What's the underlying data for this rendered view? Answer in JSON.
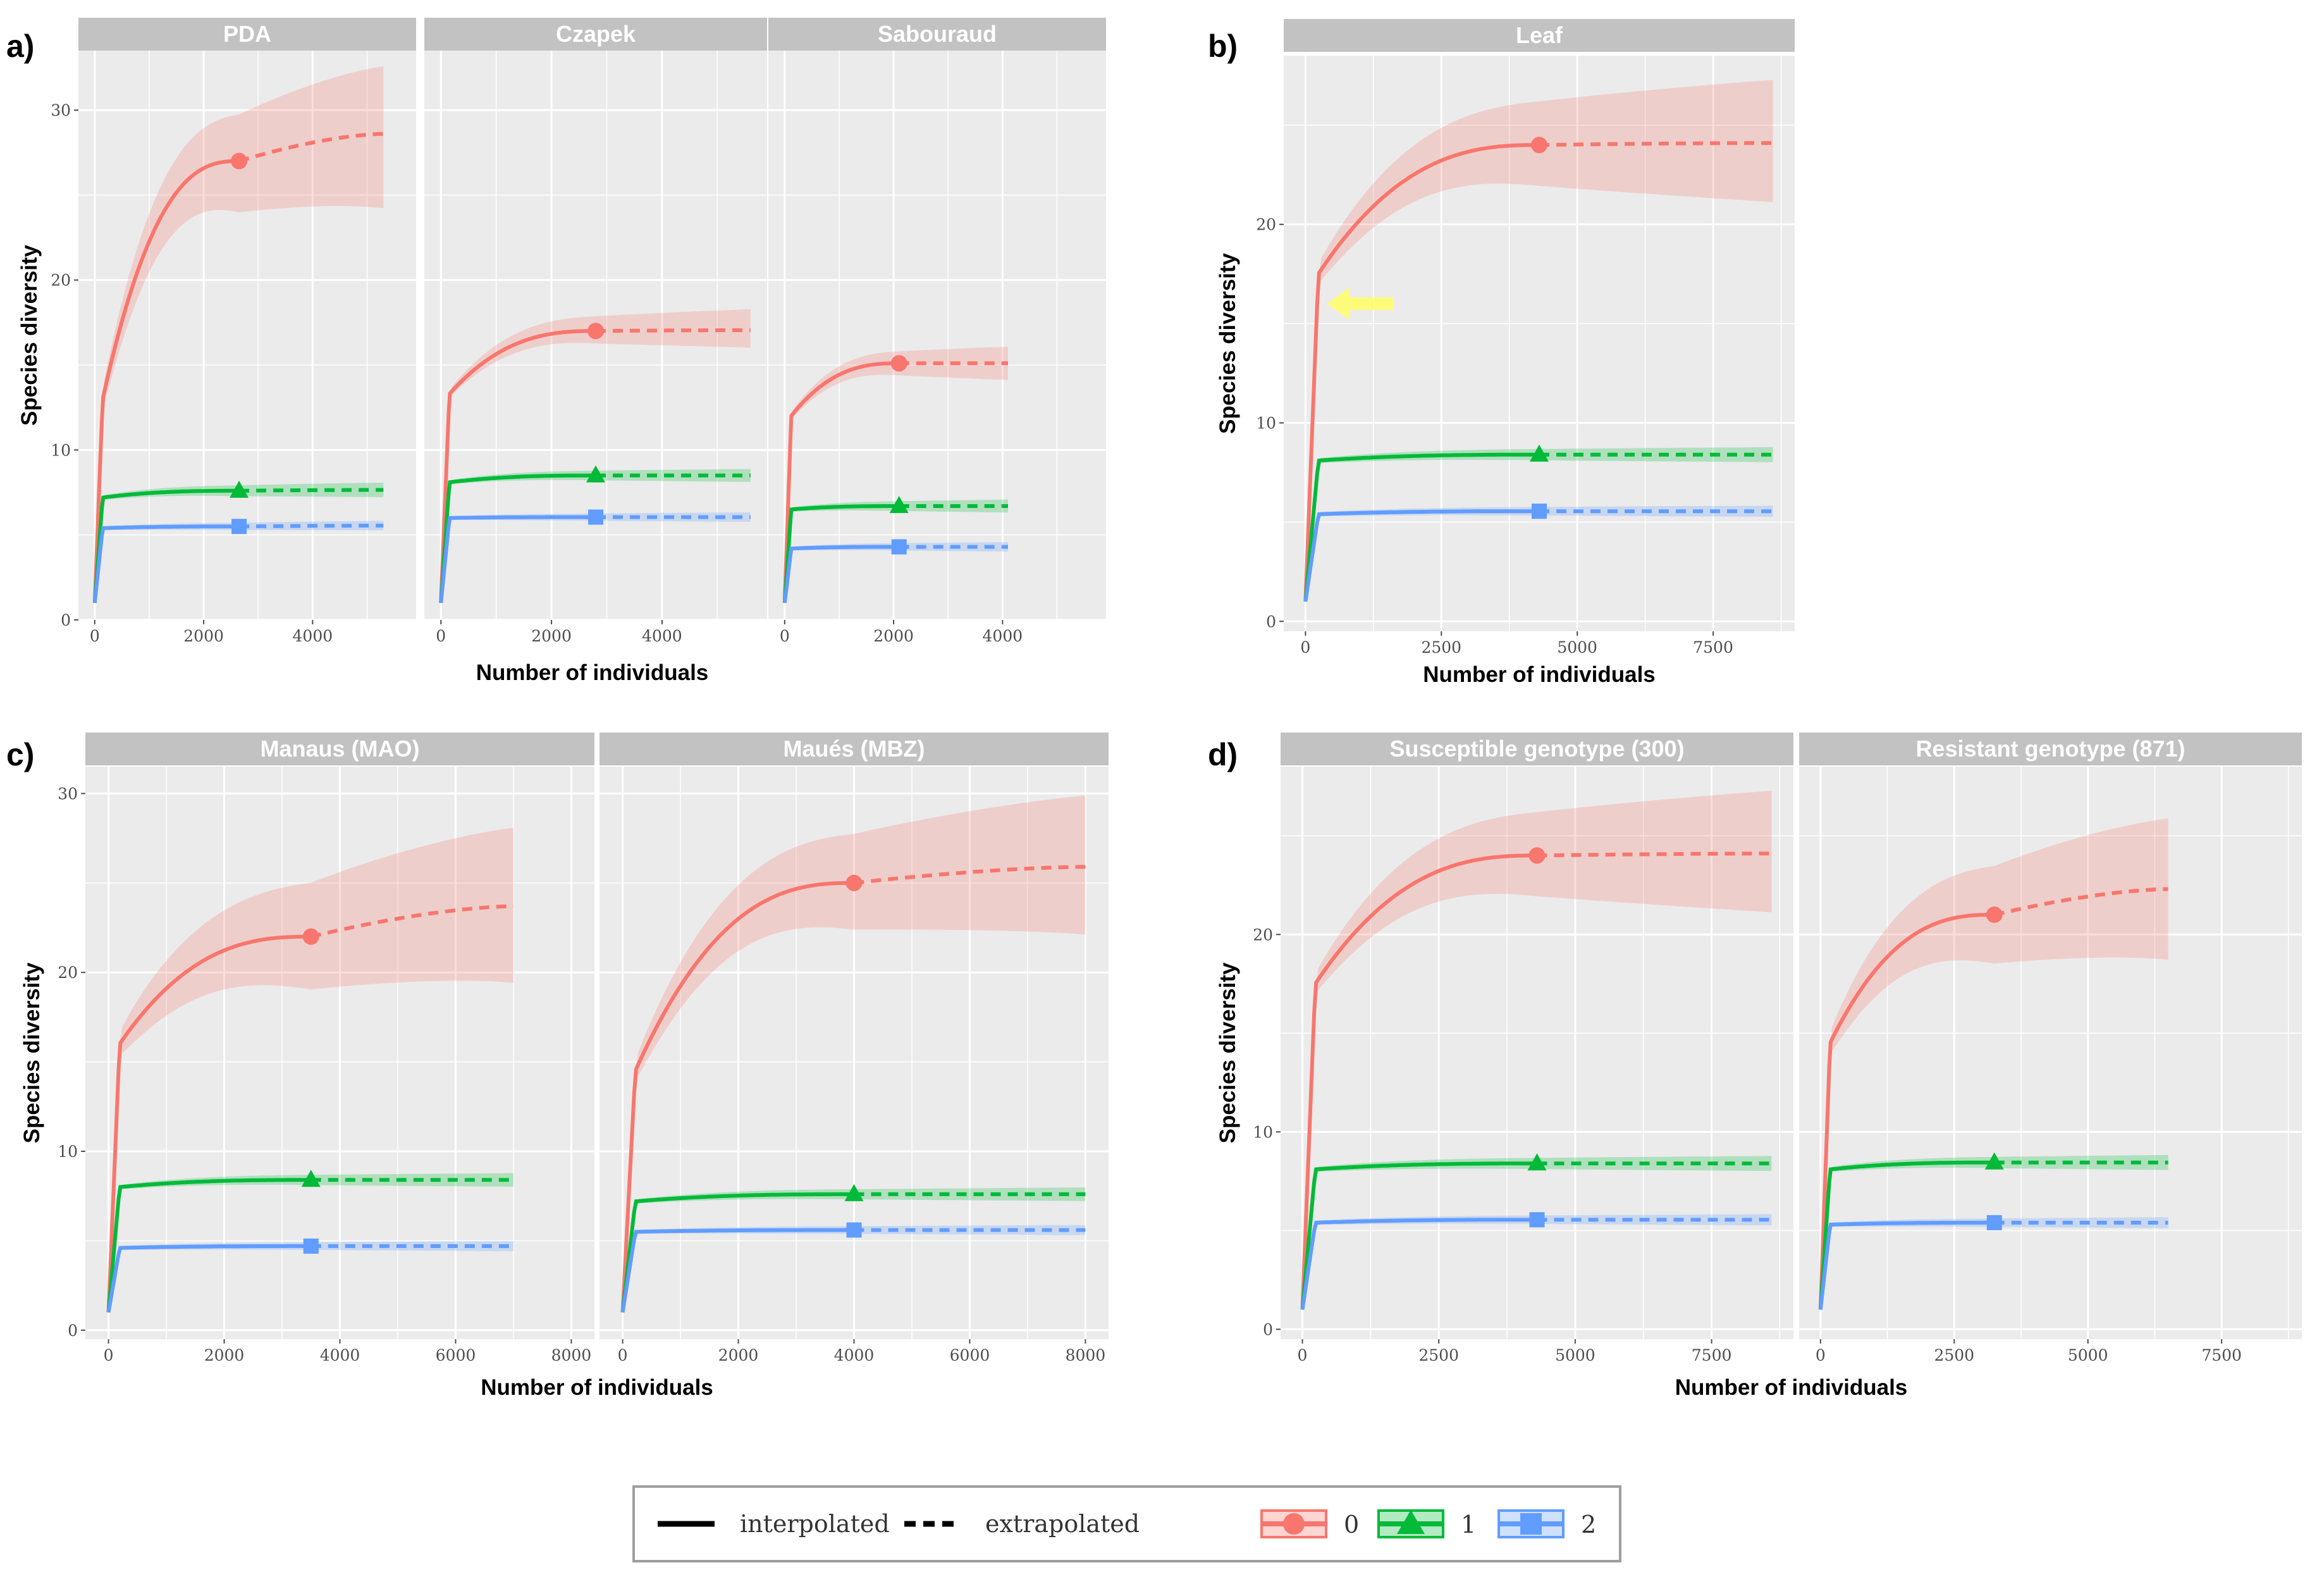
{
  "figure": {
    "legend": {
      "linetype": [
        {
          "key": "solid",
          "label": "interpolated"
        },
        {
          "key": "dashed",
          "label": "extrapolated"
        }
      ],
      "order": [
        {
          "label": "0",
          "color": "#F8766D",
          "shape": "circle"
        },
        {
          "label": "1",
          "color": "#00BA38",
          "shape": "triangle"
        },
        {
          "label": "2",
          "color": "#619CFF",
          "shape": "square"
        }
      ]
    },
    "colors": {
      "panel_bg": "#EBEBEB",
      "strip_bg": "#C2C2C2",
      "grid": "#FFFFFF"
    }
  },
  "chart_data": [
    {
      "id": "a",
      "panel_label": "a)",
      "type": "line",
      "xlabel": "Number of individuals",
      "ylabel": "Species diversity",
      "ylim": [
        0,
        33.5
      ],
      "xlim": [
        -300,
        5900
      ],
      "yticks": [
        0,
        10,
        20,
        30
      ],
      "xticks": [
        0,
        2000,
        4000
      ],
      "facets": [
        {
          "title": "PDA",
          "ref": 2650,
          "xmax": 5300,
          "series": [
            {
              "order": "0",
              "start": 1,
              "jump": 13.0,
              "observed": 27.0,
              "asymptote": 28.6,
              "ci": [
                24.3,
                32.5
              ]
            },
            {
              "order": "1",
              "start": 1,
              "jump": 7.2,
              "observed": 7.6,
              "asymptote": 7.65,
              "ci": [
                7.3,
                8.0
              ]
            },
            {
              "order": "2",
              "start": 1,
              "jump": 5.4,
              "observed": 5.5,
              "asymptote": 5.55,
              "ci": [
                5.35,
                5.75
              ]
            }
          ]
        },
        {
          "title": "Czapek",
          "ref": 2800,
          "xmax": 5600,
          "series": [
            {
              "order": "0",
              "start": 1,
              "jump": 13.3,
              "observed": 17.0,
              "asymptote": 17.05,
              "ci": [
                16.1,
                18.2
              ]
            },
            {
              "order": "1",
              "start": 1,
              "jump": 8.1,
              "observed": 8.5,
              "asymptote": 8.5,
              "ci": [
                8.2,
                8.8
              ]
            },
            {
              "order": "2",
              "start": 1,
              "jump": 6.0,
              "observed": 6.05,
              "asymptote": 6.05,
              "ci": [
                5.85,
                6.25
              ]
            }
          ]
        },
        {
          "title": "Sabouraud",
          "ref": 2100,
          "xmax": 4100,
          "series": [
            {
              "order": "0",
              "start": 1,
              "jump": 12.0,
              "observed": 15.1,
              "asymptote": 15.1,
              "ci": [
                14.2,
                16.0
              ]
            },
            {
              "order": "1",
              "start": 1,
              "jump": 6.5,
              "observed": 6.7,
              "asymptote": 6.7,
              "ci": [
                6.4,
                7.0
              ]
            },
            {
              "order": "2",
              "start": 1,
              "jump": 4.2,
              "observed": 4.3,
              "asymptote": 4.3,
              "ci": [
                4.1,
                4.5
              ]
            }
          ]
        }
      ]
    },
    {
      "id": "b",
      "panel_label": "b)",
      "type": "line",
      "xlabel": "Number of individuals",
      "ylabel": "Species diversity",
      "ylim": [
        -0.5,
        28.5
      ],
      "xlim": [
        -400,
        9000
      ],
      "yticks": [
        0,
        10,
        20
      ],
      "xticks": [
        0,
        2500,
        5000,
        7500
      ],
      "facets": [
        {
          "title": "Leaf",
          "ref": 4300,
          "xmax": 8600,
          "series": [
            {
              "order": "0",
              "start": 1,
              "jump": 17.5,
              "observed": 24.0,
              "asymptote": 24.1,
              "ci": [
                21.2,
                27.2
              ]
            },
            {
              "order": "1",
              "start": 1,
              "jump": 8.1,
              "observed": 8.4,
              "asymptote": 8.4,
              "ci": [
                8.1,
                8.7
              ]
            },
            {
              "order": "2",
              "start": 1,
              "jump": 5.4,
              "observed": 5.55,
              "asymptote": 5.55,
              "ci": [
                5.35,
                5.75
              ]
            }
          ]
        }
      ]
    },
    {
      "id": "c",
      "panel_label": "c)",
      "type": "line",
      "xlabel": "Number of individuals",
      "ylabel": "Species diversity",
      "ylim": [
        -0.5,
        31.5
      ],
      "xlim": [
        -400,
        8400
      ],
      "yticks": [
        0,
        10,
        20,
        30
      ],
      "xticks": [
        0,
        2000,
        4000,
        6000,
        8000
      ],
      "facets": [
        {
          "title": "Manaus (MAO)",
          "ref": 3500,
          "xmax": 7000,
          "series": [
            {
              "order": "0",
              "start": 1,
              "jump": 16.0,
              "observed": 22.0,
              "asymptote": 23.7,
              "ci": [
                19.5,
                28.0
              ]
            },
            {
              "order": "1",
              "start": 1,
              "jump": 8.0,
              "observed": 8.4,
              "asymptote": 8.4,
              "ci": [
                8.1,
                8.7
              ]
            },
            {
              "order": "2",
              "start": 1,
              "jump": 4.6,
              "observed": 4.7,
              "asymptote": 4.7,
              "ci": [
                4.5,
                4.9
              ]
            }
          ]
        },
        {
          "title": "Maués (MBZ)",
          "ref": 4000,
          "xmax": 8000,
          "series": [
            {
              "order": "0",
              "start": 1,
              "jump": 14.5,
              "observed": 25.0,
              "asymptote": 25.9,
              "ci": [
                22.2,
                29.8
              ]
            },
            {
              "order": "1",
              "start": 1,
              "jump": 7.2,
              "observed": 7.6,
              "asymptote": 7.6,
              "ci": [
                7.3,
                7.9
              ]
            },
            {
              "order": "2",
              "start": 1,
              "jump": 5.5,
              "observed": 5.6,
              "asymptote": 5.6,
              "ci": [
                5.4,
                5.8
              ]
            }
          ]
        }
      ]
    },
    {
      "id": "d",
      "panel_label": "d)",
      "type": "line",
      "xlabel": "Number of individuals",
      "ylabel": "Species diversity",
      "ylim": [
        -0.5,
        28.5
      ],
      "xlim": [
        -400,
        9000
      ],
      "yticks": [
        0,
        10,
        20
      ],
      "xticks": [
        0,
        2500,
        5000,
        7500
      ],
      "facets": [
        {
          "title": "Susceptible genotype (300)",
          "ref": 4300,
          "xmax": 8600,
          "series": [
            {
              "order": "0",
              "start": 1,
              "jump": 17.5,
              "observed": 24.0,
              "asymptote": 24.1,
              "ci": [
                21.2,
                27.2
              ]
            },
            {
              "order": "1",
              "start": 1,
              "jump": 8.1,
              "observed": 8.4,
              "asymptote": 8.4,
              "ci": [
                8.1,
                8.7
              ]
            },
            {
              "order": "2",
              "start": 1,
              "jump": 5.4,
              "observed": 5.55,
              "asymptote": 5.55,
              "ci": [
                5.35,
                5.75
              ]
            }
          ]
        },
        {
          "title": "Resistant genotype (871)",
          "ref": 3250,
          "xmax": 6500,
          "series": [
            {
              "order": "0",
              "start": 1,
              "jump": 14.5,
              "observed": 21.0,
              "asymptote": 22.3,
              "ci": [
                18.8,
                25.8
              ]
            },
            {
              "order": "1",
              "start": 1,
              "jump": 8.1,
              "observed": 8.45,
              "asymptote": 8.45,
              "ci": [
                8.15,
                8.75
              ]
            },
            {
              "order": "2",
              "start": 1,
              "jump": 5.3,
              "observed": 5.4,
              "asymptote": 5.4,
              "ci": [
                5.2,
                5.6
              ]
            }
          ]
        }
      ]
    }
  ]
}
